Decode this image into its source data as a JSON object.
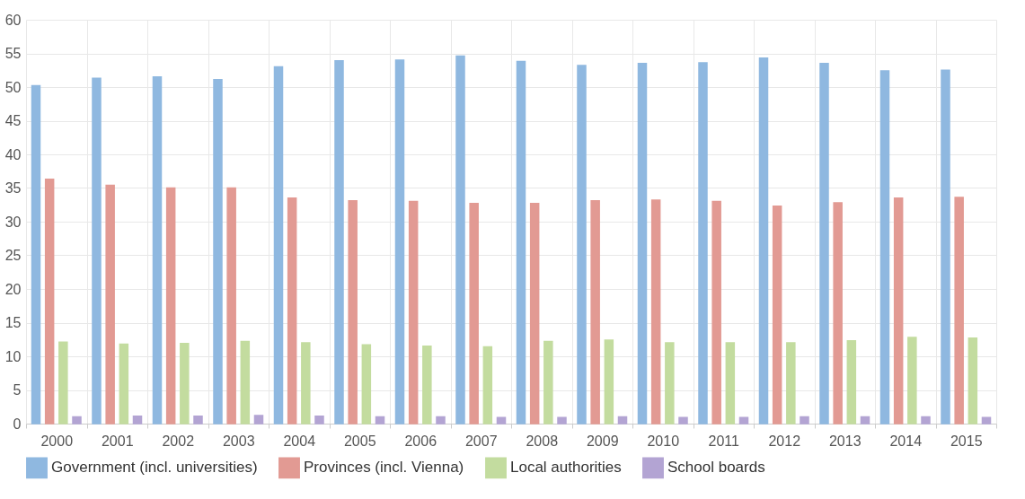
{
  "chart_data": {
    "type": "bar",
    "categories": [
      "2000",
      "2001",
      "2002",
      "2003",
      "2004",
      "2005",
      "2006",
      "2007",
      "2008",
      "2009",
      "2010",
      "2011",
      "2012",
      "2013",
      "2014",
      "2015"
    ],
    "series": [
      {
        "name": "Government (incl. universities)",
        "color": "#8fb8e0",
        "values": [
          50.2,
          51.3,
          51.5,
          51.1,
          53.0,
          53.9,
          54.0,
          54.6,
          53.8,
          53.2,
          53.5,
          53.6,
          54.3,
          53.5,
          52.4,
          52.5
        ]
      },
      {
        "name": "Provinces (incl. Vienna)",
        "color": "#e29a93",
        "values": [
          36.3,
          35.4,
          35.0,
          35.0,
          33.5,
          33.1,
          33.0,
          32.7,
          32.7,
          33.1,
          33.2,
          33.0,
          32.3,
          32.8,
          33.5,
          33.6
        ]
      },
      {
        "name": "Local authorities",
        "color": "#c3dc9f",
        "values": [
          12.1,
          11.8,
          11.9,
          12.2,
          12.0,
          11.7,
          11.5,
          11.4,
          12.2,
          12.4,
          12.0,
          12.0,
          12.0,
          12.3,
          12.8,
          12.7
        ]
      },
      {
        "name": "School boards",
        "color": "#b3a4d3",
        "values": [
          1.0,
          1.1,
          1.1,
          1.2,
          1.1,
          1.0,
          1.0,
          0.9,
          0.9,
          1.0,
          0.9,
          0.9,
          1.0,
          1.0,
          1.0,
          0.9
        ]
      }
    ],
    "ylim": [
      0,
      60
    ],
    "yticks": [
      0,
      5,
      10,
      15,
      20,
      25,
      30,
      35,
      40,
      45,
      50,
      55,
      60
    ],
    "grid": true,
    "legend": "bottom"
  }
}
